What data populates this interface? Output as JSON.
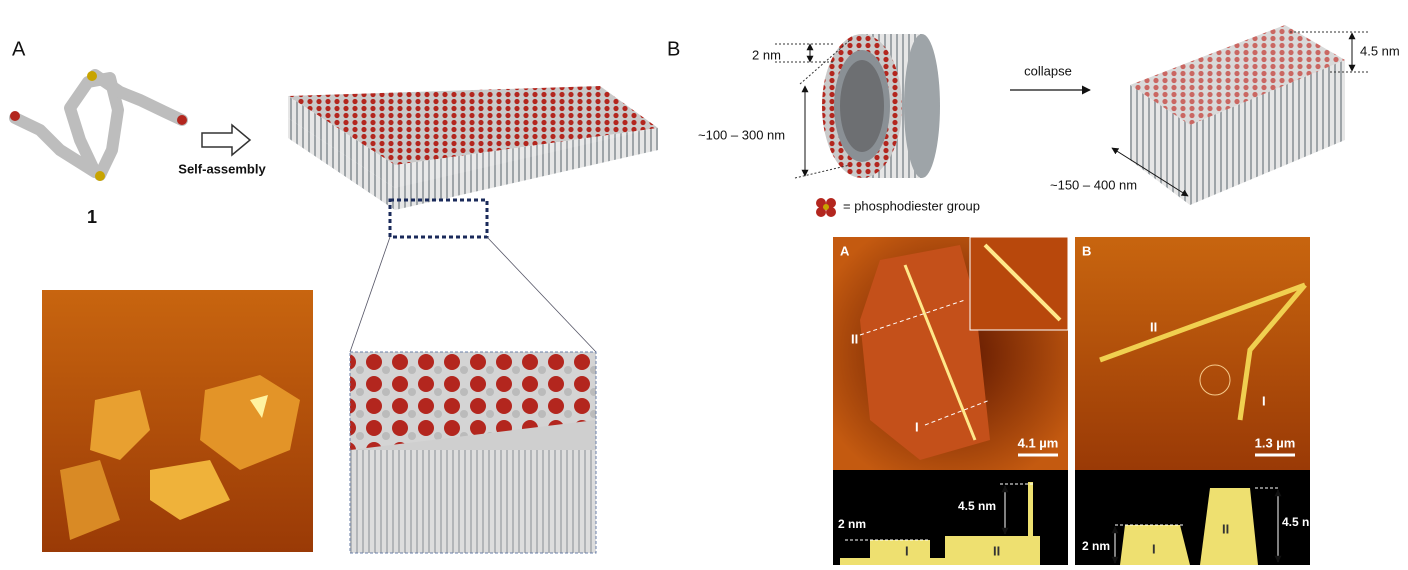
{
  "panel_a": {
    "label": "A",
    "molecule_label": "1",
    "arrow_label": "Self-assembly"
  },
  "panel_b": {
    "label": "B",
    "tube_wall": "2 nm",
    "tube_diameter": "~100 – 300 nm",
    "arrow_label": "collapse",
    "sheet_thickness": "4.5 nm",
    "sheet_width": "~150 – 400 nm",
    "legend": "= phosphodiester group"
  },
  "afm": [
    {
      "label": "A",
      "features": [
        "II",
        "I"
      ],
      "scale_bar": "4.1 µm",
      "profile": {
        "heights": [
          "2 nm",
          "4.5 nm"
        ],
        "regions": [
          "I",
          "II"
        ]
      }
    },
    {
      "label": "B",
      "features": [
        "II",
        "I"
      ],
      "scale_bar": "1.3 µm",
      "profile": {
        "heights": [
          "2 nm",
          "4.5 nm"
        ],
        "regions": [
          "I",
          "II"
        ]
      }
    }
  ]
}
